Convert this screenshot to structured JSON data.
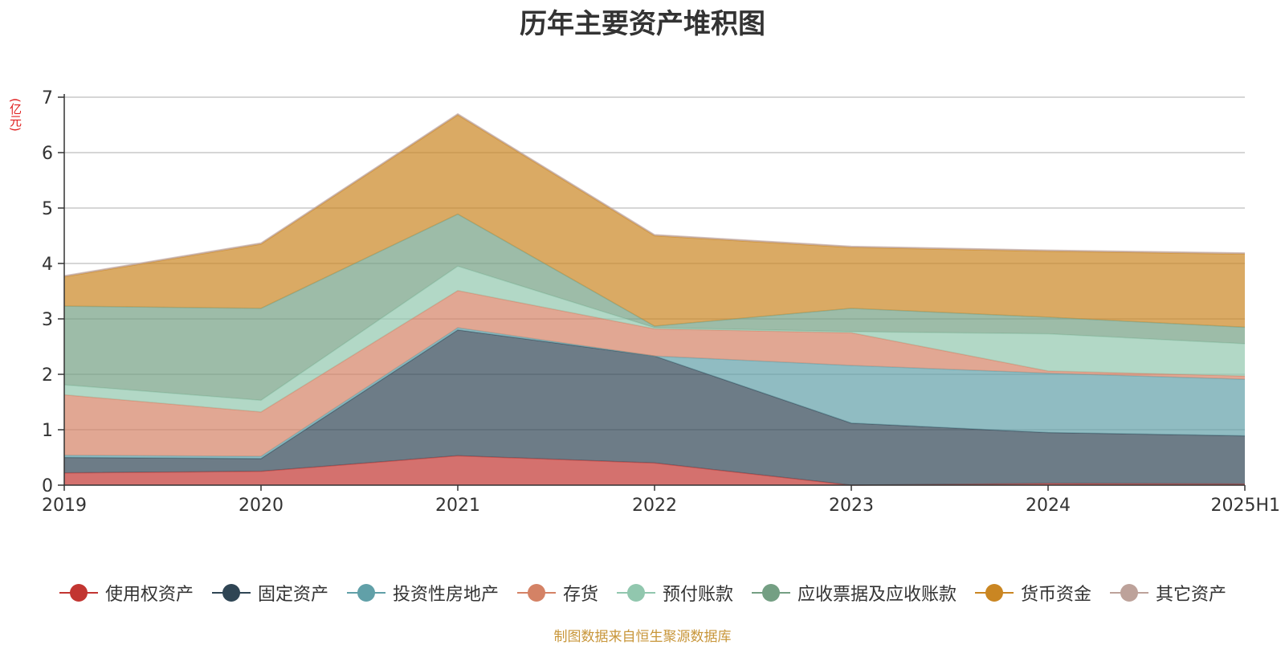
{
  "chart_data": {
    "type": "area",
    "stacked": true,
    "title": "历年主要资产堆积图",
    "unit_label": "(亿元)",
    "categories": [
      "2019",
      "2020",
      "2021",
      "2022",
      "2023",
      "2024",
      "2025H1"
    ],
    "ylim": [
      0,
      7
    ],
    "yticks": [
      0,
      1,
      2,
      3,
      4,
      5,
      6,
      7
    ],
    "grid": true,
    "legend_position": "bottom",
    "series": [
      {
        "name": "使用权资产",
        "color": "#c23531",
        "values": [
          0.22,
          0.25,
          0.53,
          0.4,
          0.0,
          0.03,
          0.02
        ]
      },
      {
        "name": "固定资产",
        "color": "#2f4554",
        "values": [
          0.28,
          0.23,
          2.27,
          1.93,
          1.12,
          0.92,
          0.87
        ]
      },
      {
        "name": "投资性房地产",
        "color": "#61a0a8",
        "values": [
          0.04,
          0.04,
          0.04,
          0.0,
          1.04,
          1.07,
          1.02
        ]
      },
      {
        "name": "存货",
        "color": "#d48265",
        "values": [
          1.09,
          0.8,
          0.67,
          0.49,
          0.59,
          0.04,
          0.06
        ]
      },
      {
        "name": "预付账款",
        "color": "#91c7ae",
        "values": [
          0.18,
          0.21,
          0.44,
          0.02,
          0.02,
          0.67,
          0.58
        ]
      },
      {
        "name": "应收票据及应收账款",
        "color": "#749f83",
        "values": [
          1.42,
          1.66,
          0.94,
          0.03,
          0.42,
          0.3,
          0.3
        ]
      },
      {
        "name": "货币资金",
        "color": "#ca8622",
        "values": [
          0.53,
          1.16,
          1.79,
          1.63,
          1.1,
          1.19,
          1.32
        ]
      },
      {
        "name": "其它资产",
        "color": "#bda29a",
        "values": [
          0.02,
          0.02,
          0.02,
          0.02,
          0.02,
          0.02,
          0.02
        ]
      }
    ]
  },
  "source_text": "制图数据来自恒生聚源数据库"
}
